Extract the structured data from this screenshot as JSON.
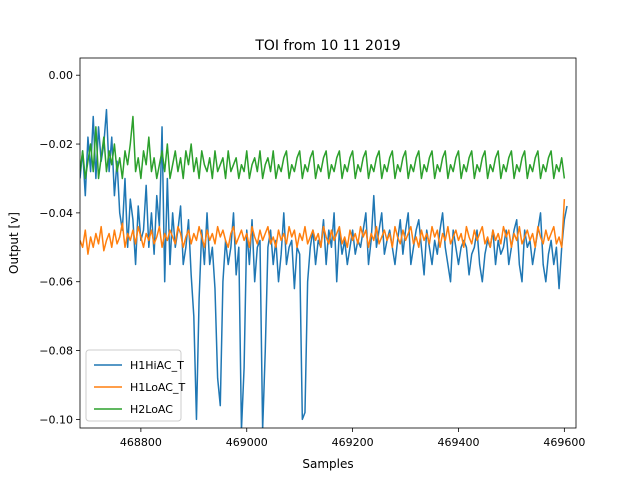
{
  "chart_data": {
    "type": "line",
    "title": "TOI from 10 11 2019",
    "xlabel": "Samples",
    "ylabel": "Output [v]",
    "xlim": [
      468685,
      469622
    ],
    "ylim": [
      -0.1025,
      0.005
    ],
    "x_ticks": [
      468800,
      469000,
      469200,
      469400,
      469600
    ],
    "x_tick_labels": [
      "468800",
      "469000",
      "469200",
      "469400",
      "469600"
    ],
    "y_ticks": [
      0.0,
      -0.02,
      -0.04,
      -0.06,
      -0.08,
      -0.1
    ],
    "y_tick_labels": [
      "0.00",
      "−0.02",
      "−0.04",
      "−0.06",
      "−0.08",
      "−0.10"
    ],
    "grid": false,
    "legend_position": "lower-left",
    "x_start": 468685,
    "x_step": 5,
    "series": [
      {
        "name": "H1HiAC_T",
        "color": "#1f77b4",
        "values": [
          -0.03,
          -0.022,
          -0.035,
          -0.018,
          -0.028,
          -0.012,
          -0.03,
          -0.015,
          -0.025,
          -0.02,
          -0.01,
          -0.028,
          -0.018,
          -0.035,
          -0.025,
          -0.04,
          -0.045,
          -0.03,
          -0.05,
          -0.036,
          -0.042,
          -0.055,
          -0.038,
          -0.048,
          -0.045,
          -0.032,
          -0.05,
          -0.04,
          -0.052,
          -0.035,
          -0.044,
          -0.015,
          -0.06,
          -0.03,
          -0.055,
          -0.04,
          -0.05,
          -0.045,
          -0.038,
          -0.055,
          -0.05,
          -0.042,
          -0.058,
          -0.07,
          -0.1,
          -0.065,
          -0.045,
          -0.055,
          -0.04,
          -0.055,
          -0.05,
          -0.062,
          -0.088,
          -0.096,
          -0.06,
          -0.048,
          -0.055,
          -0.05,
          -0.04,
          -0.058,
          -0.05,
          -0.103,
          -0.085,
          -0.045,
          -0.055,
          -0.042,
          -0.06,
          -0.05,
          -0.048,
          -0.103,
          -0.08,
          -0.05,
          -0.045,
          -0.055,
          -0.048,
          -0.06,
          -0.052,
          -0.04,
          -0.055,
          -0.05,
          -0.048,
          -0.062,
          -0.05,
          -0.052,
          -0.1,
          -0.098,
          -0.06,
          -0.05,
          -0.045,
          -0.055,
          -0.048,
          -0.05,
          -0.042,
          -0.055,
          -0.045,
          -0.05,
          -0.04,
          -0.06,
          -0.045,
          -0.052,
          -0.048,
          -0.055,
          -0.05,
          -0.045,
          -0.052,
          -0.048,
          -0.05,
          -0.045,
          -0.04,
          -0.055,
          -0.048,
          -0.035,
          -0.05,
          -0.045,
          -0.04,
          -0.052,
          -0.048,
          -0.045,
          -0.05,
          -0.055,
          -0.048,
          -0.042,
          -0.052,
          -0.045,
          -0.04,
          -0.055,
          -0.05,
          -0.045,
          -0.042,
          -0.05,
          -0.058,
          -0.045,
          -0.05,
          -0.055,
          -0.048,
          -0.052,
          -0.045,
          -0.04,
          -0.05,
          -0.055,
          -0.06,
          -0.045,
          -0.05,
          -0.055,
          -0.05,
          -0.048,
          -0.05,
          -0.058,
          -0.052,
          -0.05,
          -0.045,
          -0.055,
          -0.06,
          -0.052,
          -0.048,
          -0.05,
          -0.045,
          -0.055,
          -0.048,
          -0.052,
          -0.05,
          -0.045,
          -0.055,
          -0.05,
          -0.045,
          -0.042,
          -0.055,
          -0.06,
          -0.045,
          -0.05,
          -0.048,
          -0.055,
          -0.05,
          -0.045,
          -0.04,
          -0.055,
          -0.06,
          -0.052,
          -0.048,
          -0.055,
          -0.05,
          -0.062,
          -0.05,
          -0.042,
          -0.038
        ]
      },
      {
        "name": "H1LoAC_T",
        "color": "#ff7f0e",
        "values": [
          -0.048,
          -0.05,
          -0.045,
          -0.052,
          -0.047,
          -0.05,
          -0.046,
          -0.049,
          -0.044,
          -0.051,
          -0.048,
          -0.046,
          -0.05,
          -0.045,
          -0.049,
          -0.047,
          -0.043,
          -0.05,
          -0.046,
          -0.048,
          -0.045,
          -0.049,
          -0.044,
          -0.047,
          -0.05,
          -0.046,
          -0.048,
          -0.045,
          -0.049,
          -0.047,
          -0.044,
          -0.05,
          -0.046,
          -0.048,
          -0.045,
          -0.047,
          -0.049,
          -0.044,
          -0.046,
          -0.05,
          -0.047,
          -0.045,
          -0.049,
          -0.046,
          -0.048,
          -0.044,
          -0.047,
          -0.05,
          -0.045,
          -0.048,
          -0.046,
          -0.049,
          -0.044,
          -0.047,
          -0.045,
          -0.048,
          -0.05,
          -0.046,
          -0.044,
          -0.049,
          -0.047,
          -0.045,
          -0.048,
          -0.046,
          -0.05,
          -0.044,
          -0.047,
          -0.049,
          -0.045,
          -0.048,
          -0.046,
          -0.044,
          -0.049,
          -0.047,
          -0.05,
          -0.045,
          -0.048,
          -0.046,
          -0.049,
          -0.044,
          -0.047,
          -0.045,
          -0.05,
          -0.046,
          -0.048,
          -0.044,
          -0.049,
          -0.047,
          -0.045,
          -0.048,
          -0.046,
          -0.05,
          -0.044,
          -0.047,
          -0.049,
          -0.045,
          -0.048,
          -0.046,
          -0.044,
          -0.049,
          -0.047,
          -0.05,
          -0.045,
          -0.048,
          -0.046,
          -0.049,
          -0.044,
          -0.047,
          -0.045,
          -0.05,
          -0.046,
          -0.048,
          -0.044,
          -0.049,
          -0.047,
          -0.045,
          -0.048,
          -0.046,
          -0.05,
          -0.044,
          -0.047,
          -0.049,
          -0.045,
          -0.048,
          -0.046,
          -0.044,
          -0.049,
          -0.047,
          -0.05,
          -0.045,
          -0.048,
          -0.046,
          -0.049,
          -0.044,
          -0.047,
          -0.045,
          -0.05,
          -0.046,
          -0.048,
          -0.044,
          -0.049,
          -0.047,
          -0.045,
          -0.048,
          -0.046,
          -0.05,
          -0.044,
          -0.047,
          -0.049,
          -0.045,
          -0.048,
          -0.046,
          -0.044,
          -0.049,
          -0.047,
          -0.05,
          -0.045,
          -0.048,
          -0.046,
          -0.049,
          -0.044,
          -0.047,
          -0.045,
          -0.05,
          -0.046,
          -0.048,
          -0.044,
          -0.049,
          -0.047,
          -0.045,
          -0.048,
          -0.046,
          -0.05,
          -0.044,
          -0.047,
          -0.049,
          -0.045,
          -0.048,
          -0.046,
          -0.044,
          -0.049,
          -0.047,
          -0.05,
          -0.036
        ]
      },
      {
        "name": "H2LoAC",
        "color": "#2ca02c",
        "values": [
          -0.028,
          -0.022,
          -0.03,
          -0.025,
          -0.02,
          -0.028,
          -0.015,
          -0.03,
          -0.024,
          -0.018,
          -0.028,
          -0.022,
          -0.026,
          -0.02,
          -0.028,
          -0.024,
          -0.03,
          -0.022,
          -0.026,
          -0.02,
          -0.012,
          -0.028,
          -0.024,
          -0.03,
          -0.022,
          -0.026,
          -0.018,
          -0.028,
          -0.024,
          -0.03,
          -0.026,
          -0.022,
          -0.028,
          -0.02,
          -0.03,
          -0.026,
          -0.022,
          -0.028,
          -0.024,
          -0.03,
          -0.022,
          -0.026,
          -0.02,
          -0.028,
          -0.024,
          -0.03,
          -0.022,
          -0.026,
          -0.028,
          -0.024,
          -0.03,
          -0.022,
          -0.028,
          -0.026,
          -0.024,
          -0.03,
          -0.022,
          -0.028,
          -0.026,
          -0.024,
          -0.03,
          -0.026,
          -0.028,
          -0.022,
          -0.03,
          -0.026,
          -0.024,
          -0.028,
          -0.022,
          -0.03,
          -0.026,
          -0.024,
          -0.028,
          -0.022,
          -0.03,
          -0.026,
          -0.028,
          -0.024,
          -0.022,
          -0.03,
          -0.026,
          -0.028,
          -0.024,
          -0.022,
          -0.03,
          -0.026,
          -0.028,
          -0.024,
          -0.022,
          -0.03,
          -0.026,
          -0.028,
          -0.024,
          -0.022,
          -0.03,
          -0.026,
          -0.028,
          -0.024,
          -0.022,
          -0.03,
          -0.026,
          -0.028,
          -0.024,
          -0.022,
          -0.03,
          -0.026,
          -0.028,
          -0.024,
          -0.022,
          -0.03,
          -0.026,
          -0.028,
          -0.024,
          -0.022,
          -0.03,
          -0.026,
          -0.028,
          -0.024,
          -0.022,
          -0.03,
          -0.026,
          -0.028,
          -0.024,
          -0.022,
          -0.03,
          -0.026,
          -0.028,
          -0.024,
          -0.022,
          -0.03,
          -0.026,
          -0.028,
          -0.024,
          -0.022,
          -0.03,
          -0.026,
          -0.028,
          -0.024,
          -0.022,
          -0.03,
          -0.026,
          -0.028,
          -0.024,
          -0.022,
          -0.03,
          -0.026,
          -0.028,
          -0.024,
          -0.022,
          -0.03,
          -0.026,
          -0.028,
          -0.024,
          -0.022,
          -0.03,
          -0.026,
          -0.028,
          -0.024,
          -0.022,
          -0.03,
          -0.026,
          -0.028,
          -0.024,
          -0.022,
          -0.03,
          -0.026,
          -0.028,
          -0.024,
          -0.022,
          -0.03,
          -0.026,
          -0.028,
          -0.024,
          -0.022,
          -0.03,
          -0.026,
          -0.028,
          -0.024,
          -0.022,
          -0.03,
          -0.026,
          -0.028,
          -0.024,
          -0.03
        ]
      }
    ]
  }
}
